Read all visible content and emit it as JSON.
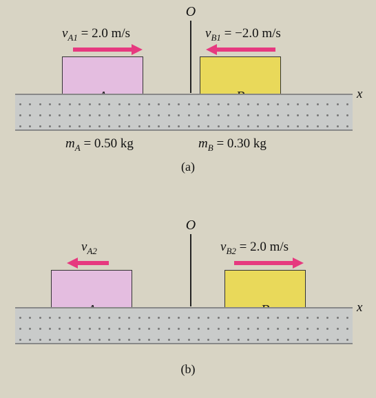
{
  "panel_a": {
    "label": "(a)",
    "axis_o": "O",
    "x_label": "x",
    "glider_a": {
      "label": "A",
      "color": "#e4bde0",
      "vel_text": "v",
      "vel_sub": "A1",
      "vel_eq": " = 2.0 m/s",
      "arrow_dir": "right"
    },
    "glider_b": {
      "label": "B",
      "color": "#e9d95a",
      "vel_text": "v",
      "vel_sub": "B1",
      "vel_eq": " = −2.0 m/s",
      "arrow_dir": "left"
    },
    "mass_a": {
      "m": "m",
      "sub": "A",
      "eq": " = 0.50 kg"
    },
    "mass_b": {
      "m": "m",
      "sub": "B",
      "eq": " = 0.30 kg"
    }
  },
  "panel_b": {
    "label": "(b)",
    "axis_o": "O",
    "x_label": "x",
    "glider_a": {
      "label": "A",
      "color": "#e4bde0",
      "vel_text": "v",
      "vel_sub": "A2",
      "arrow_dir": "left"
    },
    "glider_b": {
      "label": "B",
      "color": "#e9d95a",
      "vel_text": "v",
      "vel_sub": "B2",
      "vel_eq": " = 2.0 m/s",
      "arrow_dir": "right"
    }
  },
  "style": {
    "arrow_color": "#e6397f",
    "track_color": "#c9cbca",
    "bg_color": "#d8d4c4"
  }
}
